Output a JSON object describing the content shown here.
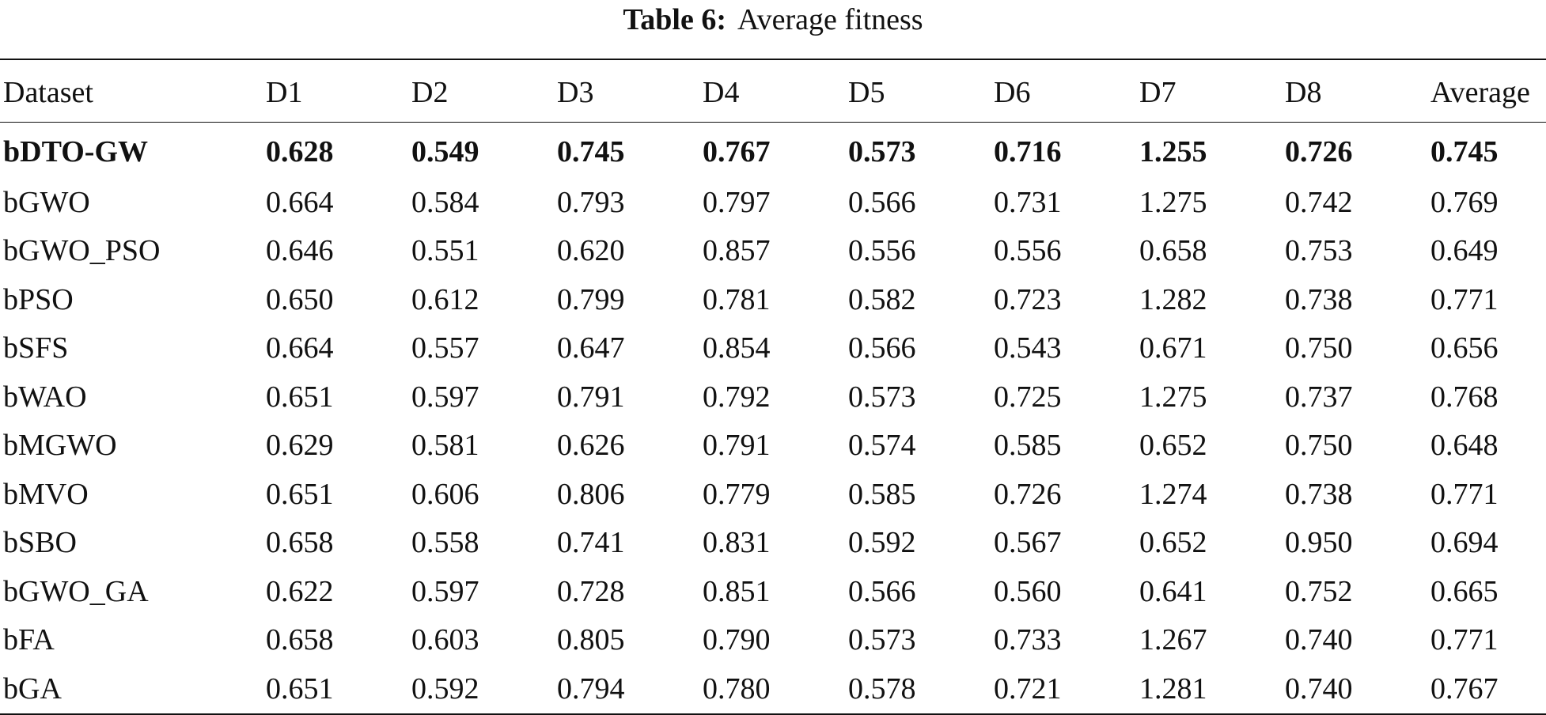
{
  "caption": {
    "label": "Table 6:",
    "title": "Average fitness"
  },
  "table": {
    "headers": [
      "Dataset",
      "D1",
      "D2",
      "D3",
      "D4",
      "D5",
      "D6",
      "D7",
      "D8",
      "Average"
    ],
    "rows": [
      [
        "bDTO-GW",
        "0.628",
        "0.549",
        "0.745",
        "0.767",
        "0.573",
        "0.716",
        "1.255",
        "0.726",
        "0.745"
      ],
      [
        "bGWO",
        "0.664",
        "0.584",
        "0.793",
        "0.797",
        "0.566",
        "0.731",
        "1.275",
        "0.742",
        "0.769"
      ],
      [
        "bGWO_PSO",
        "0.646",
        "0.551",
        "0.620",
        "0.857",
        "0.556",
        "0.556",
        "0.658",
        "0.753",
        "0.649"
      ],
      [
        "bPSO",
        "0.650",
        "0.612",
        "0.799",
        "0.781",
        "0.582",
        "0.723",
        "1.282",
        "0.738",
        "0.771"
      ],
      [
        "bSFS",
        "0.664",
        "0.557",
        "0.647",
        "0.854",
        "0.566",
        "0.543",
        "0.671",
        "0.750",
        "0.656"
      ],
      [
        "bWAO",
        "0.651",
        "0.597",
        "0.791",
        "0.792",
        "0.573",
        "0.725",
        "1.275",
        "0.737",
        "0.768"
      ],
      [
        "bMGWO",
        "0.629",
        "0.581",
        "0.626",
        "0.791",
        "0.574",
        "0.585",
        "0.652",
        "0.750",
        "0.648"
      ],
      [
        "bMVO",
        "0.651",
        "0.606",
        "0.806",
        "0.779",
        "0.585",
        "0.726",
        "1.274",
        "0.738",
        "0.771"
      ],
      [
        "bSBO",
        "0.658",
        "0.558",
        "0.741",
        "0.831",
        "0.592",
        "0.567",
        "0.652",
        "0.950",
        "0.694"
      ],
      [
        "bGWO_GA",
        "0.622",
        "0.597",
        "0.728",
        "0.851",
        "0.566",
        "0.560",
        "0.641",
        "0.752",
        "0.665"
      ],
      [
        "bFA",
        "0.658",
        "0.603",
        "0.805",
        "0.790",
        "0.573",
        "0.733",
        "1.267",
        "0.740",
        "0.771"
      ],
      [
        "bGA",
        "0.651",
        "0.592",
        "0.794",
        "0.780",
        "0.578",
        "0.721",
        "1.281",
        "0.740",
        "0.767"
      ]
    ]
  }
}
